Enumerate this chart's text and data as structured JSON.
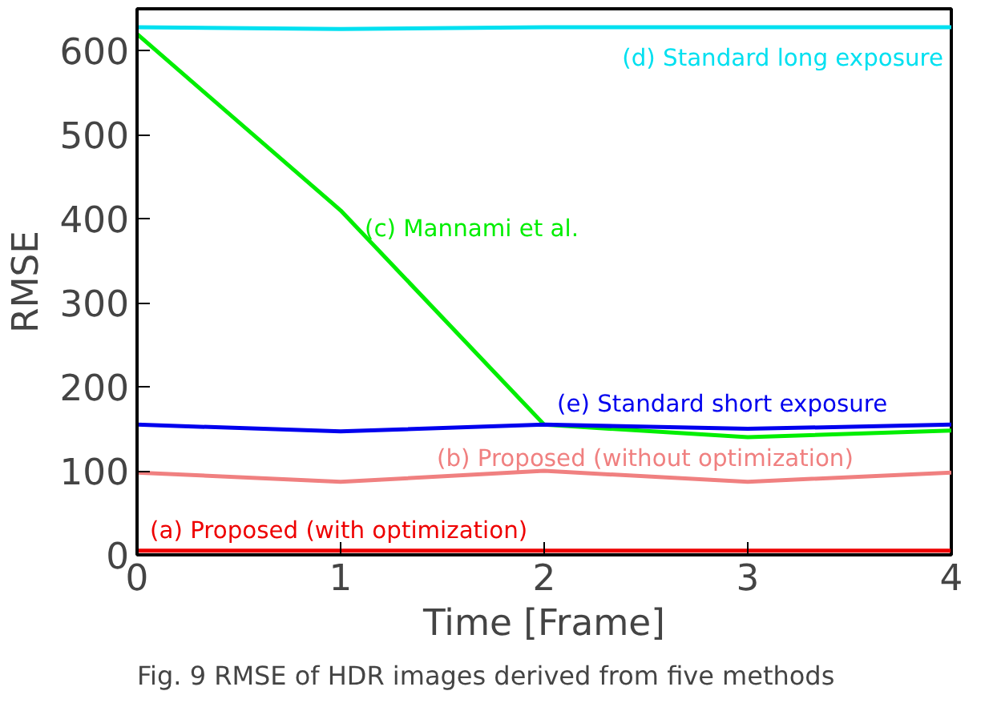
{
  "chart_data": {
    "type": "line",
    "xlabel": "Time [Frame]",
    "ylabel": "RMSE",
    "x": [
      0,
      1,
      2,
      3,
      4
    ],
    "series": [
      {
        "name": "(d) Standard long exposure",
        "color": "#00e0f0",
        "values": [
          628,
          626,
          628,
          628,
          628
        ]
      },
      {
        "name": "(c) Mannami et al.",
        "color": "#00ee00",
        "values": [
          620,
          410,
          155,
          140,
          148
        ]
      },
      {
        "name": "(e) Standard short exposure",
        "color": "#0000ee",
        "values": [
          155,
          147,
          155,
          150,
          155
        ]
      },
      {
        "name": "(b) Proposed (without optimization)",
        "color": "#f08080",
        "values": [
          98,
          87,
          100,
          87,
          98
        ]
      },
      {
        "name": "(a) Proposed (with optimization)",
        "color": "#ee0000",
        "values": [
          5,
          5,
          5,
          5,
          5
        ]
      }
    ],
    "xlim": [
      0,
      4
    ],
    "ylim": [
      0,
      650
    ],
    "xticks": [
      0,
      1,
      2,
      3,
      4
    ],
    "yticks": [
      0,
      100,
      200,
      300,
      400,
      500,
      600
    ],
    "grid": false,
    "annotations": [
      "Fig. 9 RMSE of HDR images derived from five methods"
    ]
  }
}
